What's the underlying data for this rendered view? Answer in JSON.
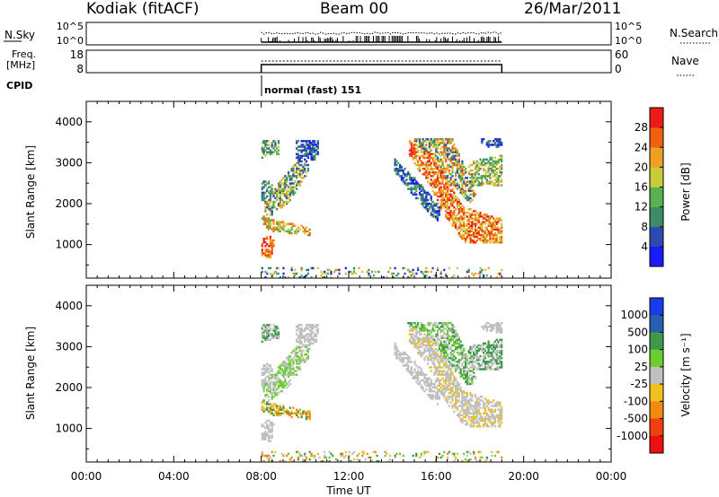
{
  "header": {
    "station": "Kodiak (fitACF)",
    "beam": "Beam 00",
    "date": "26/Mar/2011"
  },
  "strip_labels": {
    "nsky": "N.Sky",
    "nsearch": "N.Search",
    "freq_line1": "Freq.",
    "freq_line2": "[MHz]",
    "nave": "Nave",
    "cpid": "CPID",
    "nsky_ticks": [
      "10^5",
      "10^0"
    ],
    "freq_ticks": [
      "18",
      "8"
    ],
    "nave_ticks": [
      "60",
      "0"
    ],
    "nsearch_ticks": [
      "10^5",
      "10^0"
    ],
    "cpid_text": "normal (fast) 151"
  },
  "chart_data": [
    {
      "type": "heatmap",
      "panel": "power",
      "ylabel": "Slant Range [km]",
      "xlabel": "Time UT",
      "x_ticks": [
        "00:00",
        "04:00",
        "08:00",
        "12:00",
        "16:00",
        "20:00",
        "00:00"
      ],
      "x_range_hours": [
        0,
        24
      ],
      "y_ticks": [
        1000,
        2000,
        3000,
        4000
      ],
      "ylim": [
        180,
        4500
      ],
      "colorbar": {
        "label": "Power [dB]",
        "ticks": [
          4,
          8,
          12,
          16,
          20,
          24,
          28
        ],
        "range": [
          0,
          32
        ],
        "colors": [
          "#1a1aff",
          "#2c4ab0",
          "#3f8a6a",
          "#58b050",
          "#c8cc3a",
          "#f0a020",
          "#f06010",
          "#ee1a1a"
        ]
      },
      "data_time_range_hours": [
        8,
        19
      ]
    },
    {
      "type": "heatmap",
      "panel": "velocity",
      "ylabel": "Slant Range [km]",
      "xlabel": "Time UT",
      "x_ticks": [
        "00:00",
        "04:00",
        "08:00",
        "12:00",
        "16:00",
        "20:00",
        "00:00"
      ],
      "x_range_hours": [
        0,
        24
      ],
      "y_ticks": [
        1000,
        2000,
        3000,
        4000
      ],
      "ylim": [
        180,
        4500
      ],
      "colorbar": {
        "label": "Velocity [m s⁻¹]",
        "ticks": [
          1000,
          500,
          100,
          25,
          -25,
          -100,
          -500,
          -1000
        ],
        "colors": [
          "#1a3aee",
          "#2a5fb0",
          "#3e9a4a",
          "#6ccc30",
          "#c0c0c0",
          "#f0c020",
          "#f08a10",
          "#f04010",
          "#ee1010"
        ]
      },
      "data_time_range_hours": [
        8,
        19
      ]
    }
  ]
}
